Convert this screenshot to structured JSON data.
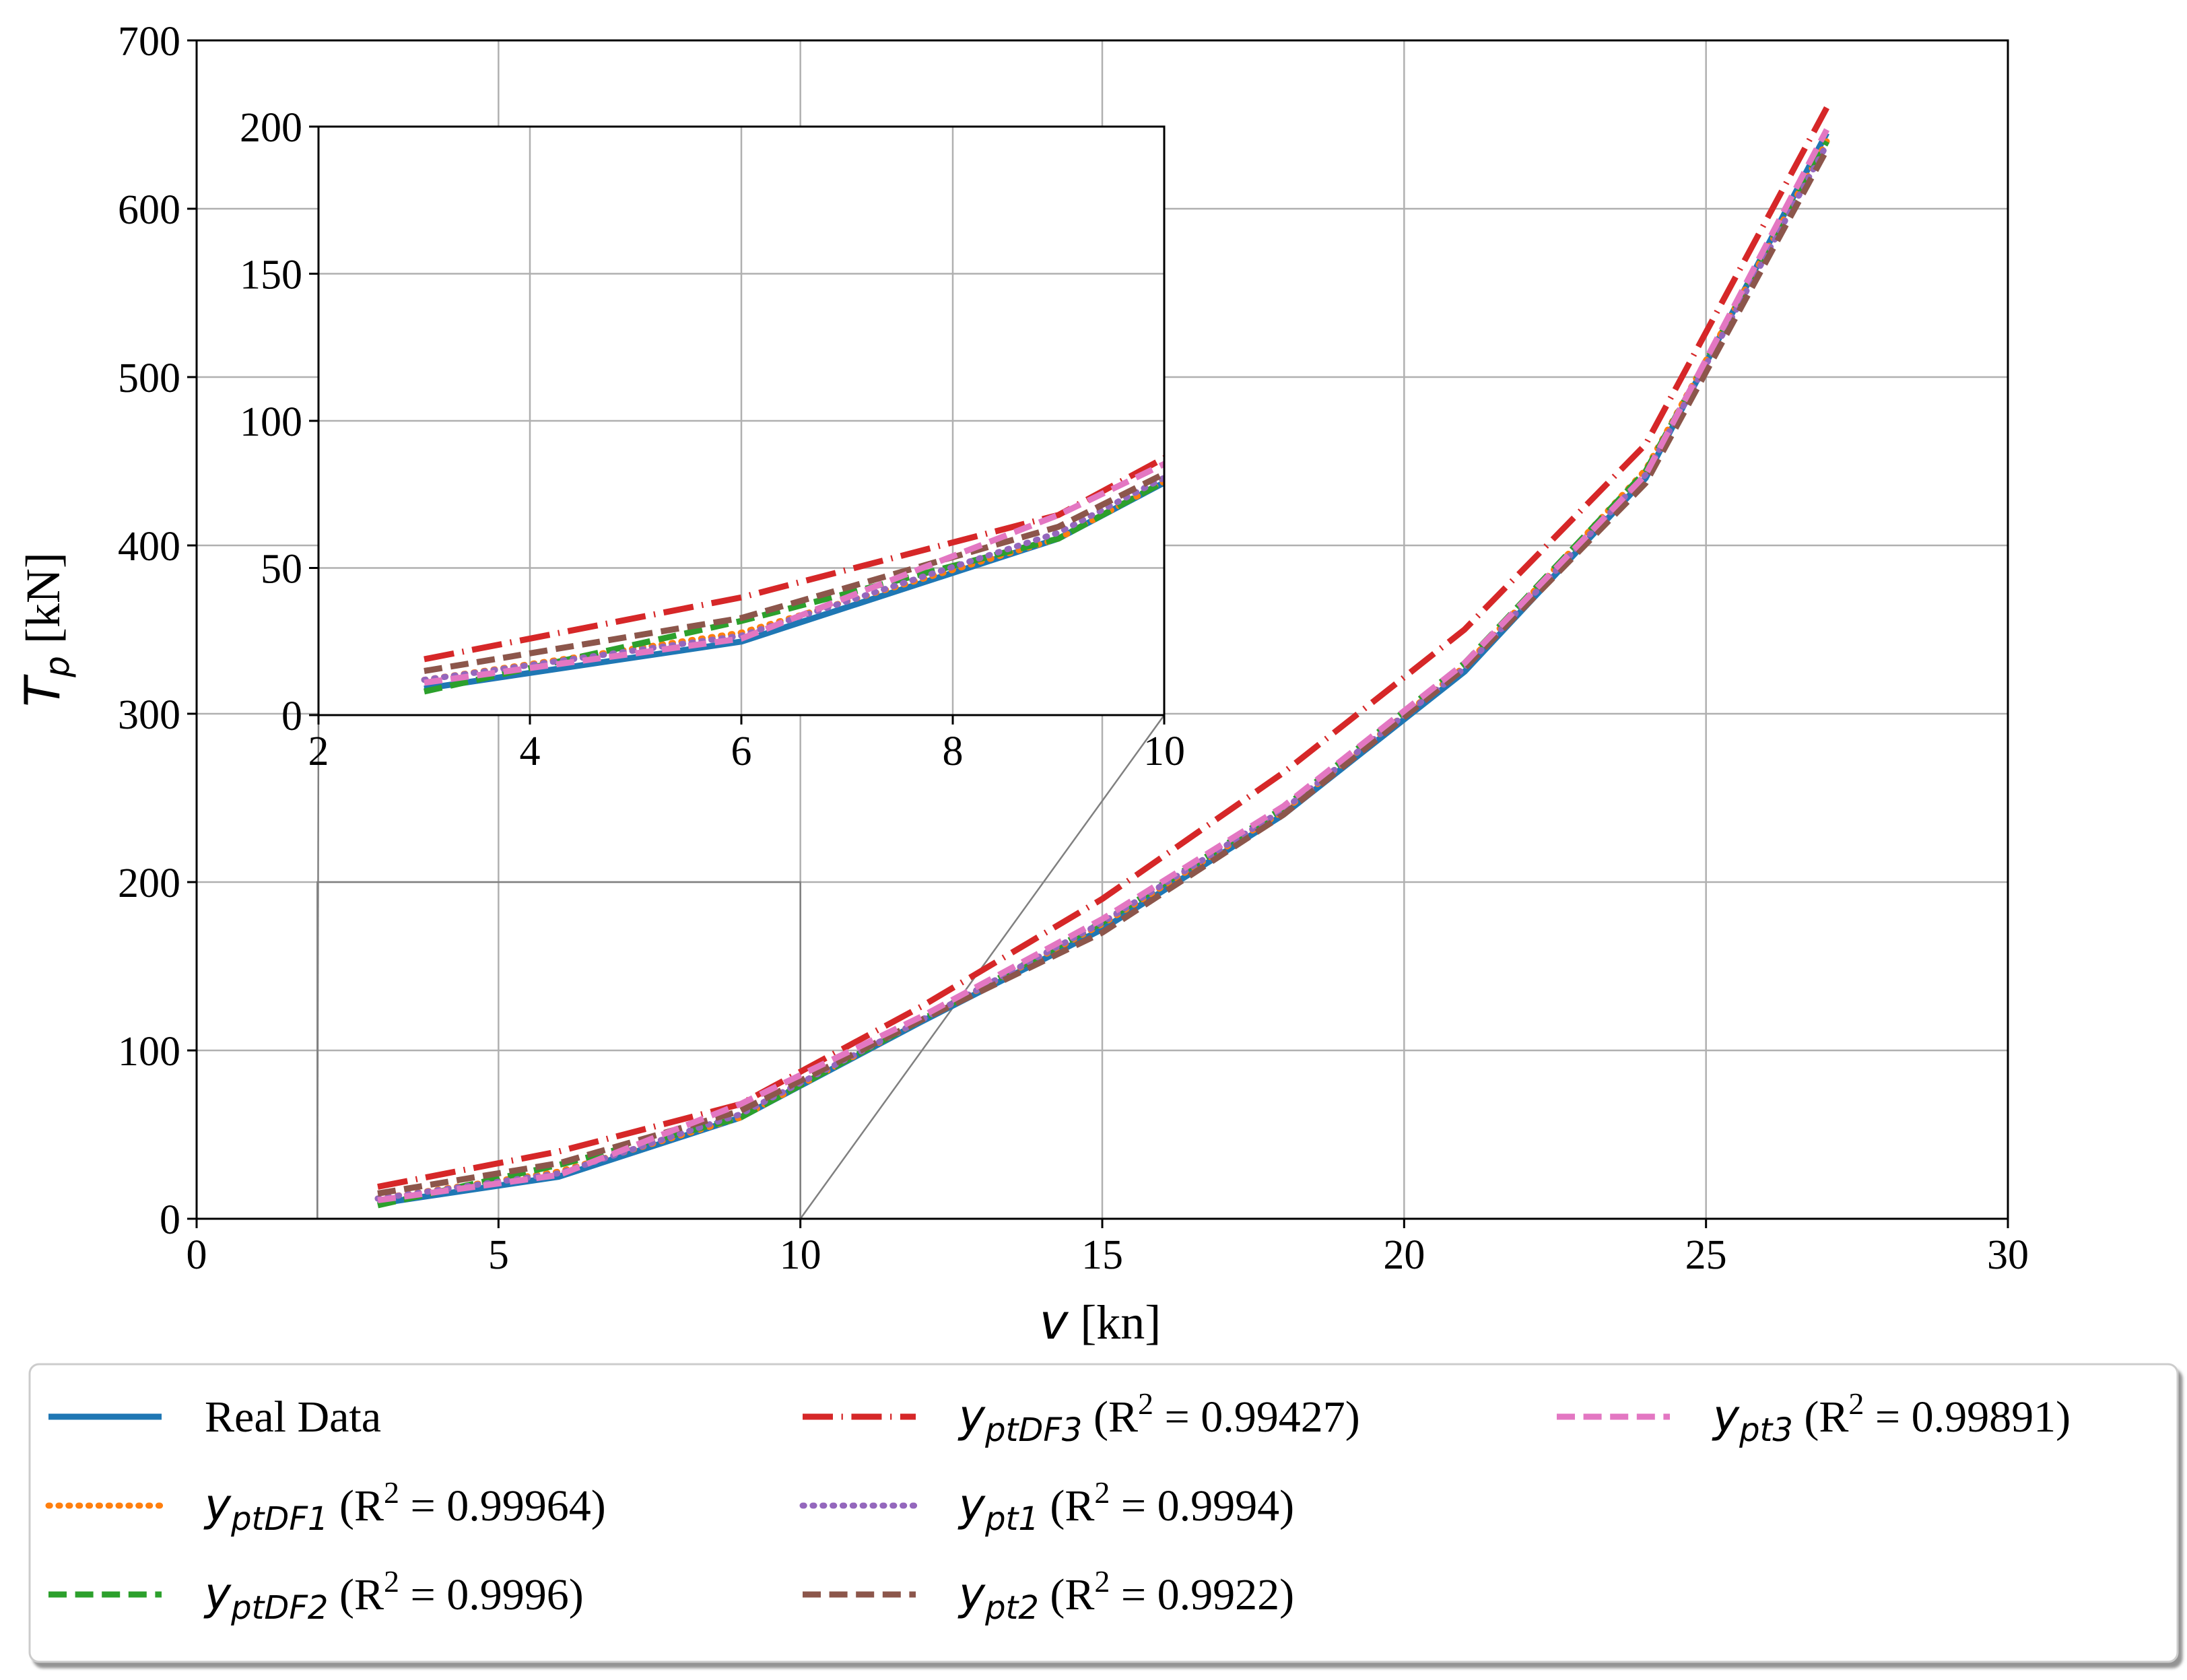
{
  "chart_data": {
    "type": "line",
    "main": {
      "x_axis": {
        "var": "v",
        "unit": " [kn]",
        "lim": [
          0,
          30
        ],
        "ticks": [
          0,
          5,
          10,
          15,
          20,
          25,
          30
        ],
        "tick_labels": [
          "0",
          "5",
          "10",
          "15",
          "20",
          "25",
          "30"
        ]
      },
      "y_axis": {
        "var": "T",
        "sub": "p",
        "unit": " [kN]",
        "lim": [
          0,
          700
        ],
        "ticks": [
          0,
          100,
          200,
          300,
          400,
          500,
          600,
          700
        ],
        "tick_labels": [
          "0",
          "100",
          "200",
          "300",
          "400",
          "500",
          "600",
          "700"
        ]
      },
      "grid": true
    },
    "inset": {
      "x_axis": {
        "lim": [
          2,
          10
        ],
        "ticks": [
          2,
          4,
          6,
          8,
          10
        ],
        "tick_labels": [
          "2",
          "4",
          "6",
          "8",
          "10"
        ]
      },
      "y_axis": {
        "lim": [
          0,
          200
        ],
        "ticks": [
          0,
          50,
          100,
          150,
          200
        ],
        "tick_labels": [
          "0",
          "50",
          "100",
          "150",
          "200"
        ]
      },
      "grid": true
    },
    "x": [
      3,
      6,
      9,
      12,
      15,
      18,
      21,
      24,
      27
    ],
    "series": [
      {
        "key": "real",
        "name": "Real Data",
        "color": "#1f77b4",
        "dash": "solid",
        "values": [
          9,
          25,
          60,
          117,
          172,
          240,
          325,
          440,
          645
        ]
      },
      {
        "key": "ptDF1",
        "base": "y",
        "sub": "ptDF1",
        "r2": " (R",
        "r2_exp": "2",
        "r2_val": " = 0.99964)",
        "color": "#ff7f0e",
        "dash": "dotted",
        "values": [
          12,
          28,
          60,
          118,
          175,
          242,
          328,
          445,
          640
        ]
      },
      {
        "key": "ptDF2",
        "base": "y",
        "sub": "ptDF2",
        "r2": " (R",
        "r2_exp": "2",
        "r2_val": " = 0.9996)",
        "color": "#2ca02c",
        "dash": "dashed",
        "values": [
          8,
          32,
          60,
          118,
          176,
          244,
          330,
          444,
          640
        ]
      },
      {
        "key": "ptDF3",
        "base": "y",
        "sub": "ptDF3",
        "r2": " (R",
        "r2_exp": "2",
        "r2_val": " = 0.99427)",
        "color": "#d62728",
        "dash": "dashdot",
        "values": [
          19,
          40,
          68,
          126,
          190,
          265,
          350,
          460,
          660
        ]
      },
      {
        "key": "pt1",
        "base": "y",
        "sub": "pt1",
        "r2": " (R",
        "r2_exp": "2",
        "r2_val": " = 0.9994)",
        "color": "#9467bd",
        "dash": "dotted",
        "values": [
          12,
          27,
          62,
          118,
          176,
          243,
          327,
          442,
          638
        ]
      },
      {
        "key": "pt2",
        "base": "y",
        "sub": "pt2",
        "r2": " (R",
        "r2_exp": "2",
        "r2_val": " = 0.9922)",
        "color": "#8c564b",
        "dash": "dashed",
        "values": [
          15,
          33,
          64,
          118,
          170,
          240,
          327,
          437,
          635
        ]
      },
      {
        "key": "pt3",
        "base": "y",
        "sub": "pt3",
        "r2": " (R",
        "r2_exp": "2",
        "r2_val": " = 0.99891)",
        "color": "#e377c2",
        "dash": "dashed",
        "values": [
          11,
          26,
          68,
          120,
          178,
          245,
          330,
          442,
          647
        ]
      }
    ],
    "legend_position": "below-center"
  }
}
